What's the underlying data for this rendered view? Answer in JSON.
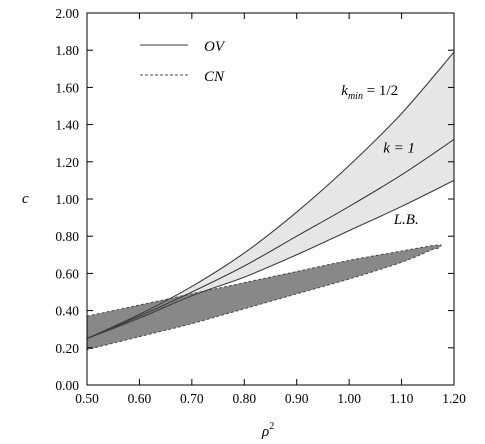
{
  "chart_data": {
    "type": "line",
    "xlabel": "ρ",
    "xlabel_sup": "2",
    "ylabel": "c",
    "xlim": [
      0.5,
      1.2
    ],
    "ylim": [
      0.0,
      2.0
    ],
    "xticks": [
      0.5,
      0.6,
      0.7,
      0.8,
      0.9,
      1.0,
      1.1,
      1.2
    ],
    "xtick_labels": [
      "0.50",
      "0.60",
      "0.70",
      "0.80",
      "0.90",
      "1.00",
      "1.10",
      "1.20"
    ],
    "yticks": [
      0.0,
      0.2,
      0.4,
      0.6,
      0.8,
      1.0,
      1.2,
      1.4,
      1.6,
      1.8,
      2.0
    ],
    "ytick_labels": [
      "0.00",
      "0.20",
      "0.40",
      "0.60",
      "0.80",
      "1.00",
      "1.20",
      "1.40",
      "1.60",
      "1.80",
      "2.00"
    ],
    "legend": {
      "placement": "top-left",
      "entries": [
        {
          "label": "OV",
          "style": "solid"
        },
        {
          "label": "CN",
          "style": "dashed"
        }
      ]
    },
    "series": [
      {
        "id": "kmin",
        "style": "solid",
        "x": [
          0.5,
          0.6,
          0.7,
          0.8,
          0.9,
          1.0,
          1.1,
          1.2
        ],
        "y": [
          0.25,
          0.38,
          0.53,
          0.71,
          0.93,
          1.18,
          1.46,
          1.79
        ]
      },
      {
        "id": "k1",
        "style": "solid",
        "x": [
          0.5,
          0.6,
          0.7,
          0.8,
          0.9,
          1.0,
          1.1,
          1.2
        ],
        "y": [
          0.25,
          0.37,
          0.5,
          0.64,
          0.8,
          0.96,
          1.13,
          1.32
        ]
      },
      {
        "id": "lb",
        "style": "solid",
        "x": [
          0.5,
          0.6,
          0.7,
          0.8,
          0.9,
          1.0,
          1.1,
          1.2
        ],
        "y": [
          0.25,
          0.36,
          0.48,
          0.58,
          0.7,
          0.83,
          0.96,
          1.1
        ]
      }
    ],
    "cn_region": {
      "style": "dashed",
      "fill": "#888888",
      "upper": {
        "x": [
          0.5,
          0.6,
          0.7,
          0.8,
          0.9,
          1.0,
          1.1,
          1.16
        ],
        "y": [
          0.37,
          0.43,
          0.49,
          0.55,
          0.61,
          0.67,
          0.72,
          0.75
        ]
      },
      "lower": {
        "x": [
          0.5,
          0.6,
          0.7,
          0.8,
          0.9,
          1.0,
          1.1,
          1.16
        ],
        "y": [
          0.19,
          0.26,
          0.33,
          0.41,
          0.49,
          0.57,
          0.66,
          0.73
        ]
      },
      "tip": {
        "x": 1.175,
        "y": 0.75
      }
    },
    "annotations": [
      {
        "id": "ann-kmin",
        "text_main": "k",
        "text_sub": "min",
        "text_rest": " = 1/2",
        "x": 0.985,
        "y": 1.56
      },
      {
        "id": "ann-k1",
        "text": "k = 1",
        "x": 1.065,
        "y": 1.25
      },
      {
        "id": "ann-lb",
        "text": "L.B.",
        "x": 1.085,
        "y": 0.865
      }
    ],
    "colors": {
      "band_fill": "#e6e6e6",
      "line": "#3c3c3c",
      "cn_fill": "#888888",
      "cn_edge": "#4a4a4a"
    }
  }
}
